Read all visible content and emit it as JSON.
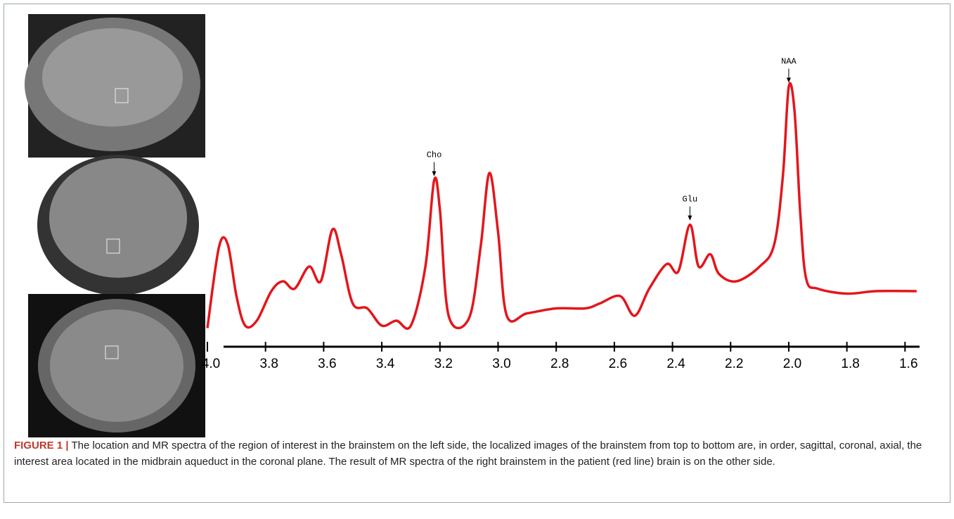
{
  "chart_data": {
    "type": "line",
    "x": [
      4.0,
      3.96,
      3.93,
      3.9,
      3.87,
      3.83,
      3.78,
      3.74,
      3.7,
      3.65,
      3.61,
      3.57,
      3.54,
      3.5,
      3.45,
      3.4,
      3.35,
      3.3,
      3.25,
      3.22,
      3.2,
      3.17,
      3.1,
      3.06,
      3.03,
      3.0,
      2.97,
      2.9,
      2.8,
      2.7,
      2.65,
      2.58,
      2.53,
      2.48,
      2.42,
      2.38,
      2.34,
      2.31,
      2.27,
      2.24,
      2.18,
      2.1,
      2.05,
      2.02,
      2.0,
      1.98,
      1.96,
      1.94,
      1.9,
      1.8,
      1.7,
      1.56
    ],
    "series": [
      {
        "color": "#e3161c",
        "values": [
          1,
          34,
          35,
          14,
          2,
          4,
          16,
          20,
          17,
          26,
          20,
          41,
          31,
          11,
          9,
          2,
          4,
          2,
          26,
          61,
          49,
          6,
          5,
          34,
          64,
          40,
          6,
          7,
          9,
          9,
          11,
          14,
          6,
          17,
          27,
          24,
          43,
          26,
          31,
          23,
          20,
          26,
          35,
          63,
          99,
          89,
          47,
          21,
          17,
          15,
          16,
          16
        ]
      }
    ],
    "xlim": [
      4.0,
      1.55
    ],
    "ylim": [
      0,
      100
    ],
    "xticks": [
      {
        "value": 4.0,
        "label": "4.0"
      },
      3.8,
      3.6,
      3.4,
      3.2,
      {
        "value": 3.0,
        "label": "3.0"
      },
      2.8,
      2.6,
      2.4,
      2.2,
      {
        "value": 2.0,
        "label": "2.0"
      },
      1.8,
      1.6
    ],
    "annotations": [
      {
        "text": "Cho",
        "x": 3.22,
        "y": 61
      },
      {
        "text": "Glu",
        "x": 2.34,
        "y": 43
      },
      {
        "text": "NAA",
        "x": 2.0,
        "y": 99
      }
    ]
  },
  "caption": {
    "label": "FIGURE 1 |",
    "text": "The location and MR spectra of the region of interest in the brainstem on the left side, the localized images of the brainstem from top to bottom are, in order, sagittal, coronal, axial, the interest area located in the midbrain aqueduct in the coronal plane. The result of MR spectra of the right brainstem in the patient (red line) brain is on the other side."
  }
}
